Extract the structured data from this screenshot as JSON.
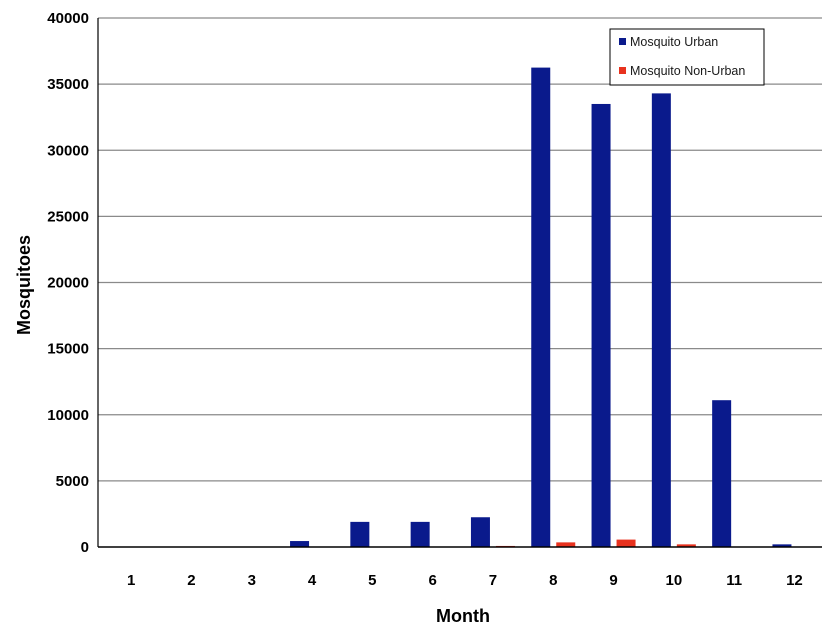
{
  "chart_data": {
    "type": "bar",
    "title": "",
    "xlabel": "Month",
    "ylabel": "Mosquitoes",
    "categories": [
      "1",
      "2",
      "3",
      "4",
      "5",
      "6",
      "7",
      "8",
      "9",
      "10",
      "11",
      "12"
    ],
    "ylim": [
      0,
      40000
    ],
    "yticks": [
      "0",
      "5000",
      "10000",
      "15000",
      "20000",
      "25000",
      "30000",
      "35000",
      "40000"
    ],
    "grid": true,
    "legend_position": "top-right",
    "series": [
      {
        "name": "Mosquito Urban",
        "color": "#0a1a8c",
        "values": [
          0,
          0,
          0,
          450,
          1900,
          1900,
          2250,
          36250,
          33500,
          34300,
          11100,
          200
        ]
      },
      {
        "name": "Mosquito Non-Urban",
        "color": "#e8321e",
        "values": [
          0,
          0,
          0,
          0,
          0,
          0,
          80,
          350,
          560,
          200,
          0,
          0
        ]
      }
    ]
  }
}
